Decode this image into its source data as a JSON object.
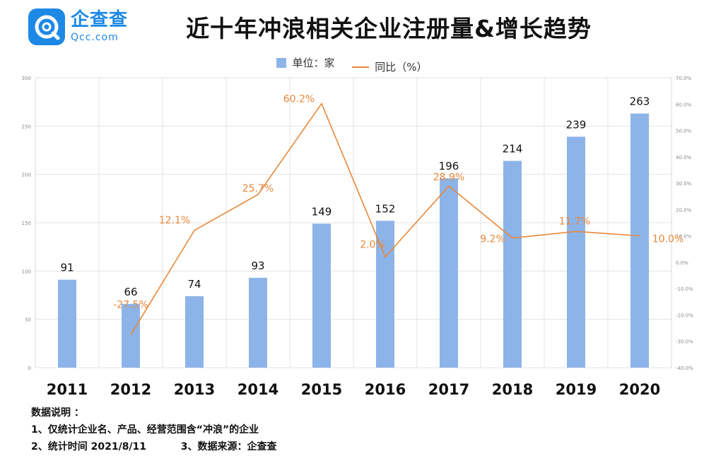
{
  "logo": {
    "name": "企查查",
    "sub": "Qcc.com"
  },
  "title": "近十年冲浪相关企业注册量&增长趋势",
  "legend": {
    "bar": "单位：家",
    "line": "同比（%）"
  },
  "colors": {
    "bar": "#8db4e8",
    "line": "#e7883a",
    "line_label": "#e7883a"
  },
  "notes": {
    "heading": "数据说明 ：",
    "line1": "1、仅统计企业名、产品、经营范围含“冲浪”的企业",
    "line2": "2、统计时间 2021/8/11          3、数据来源：企查查"
  },
  "chart_data": {
    "type": "bar",
    "categories": [
      "2011",
      "2012",
      "2013",
      "2014",
      "2015",
      "2016",
      "2017",
      "2018",
      "2019",
      "2020"
    ],
    "series": [
      {
        "name": "单位：家",
        "type": "bar",
        "axis": "left",
        "values": [
          91,
          66,
          74,
          93,
          149,
          152,
          196,
          214,
          239,
          263
        ]
      },
      {
        "name": "同比（%）",
        "type": "line",
        "axis": "right",
        "values": [
          null,
          -27.5,
          12.1,
          25.7,
          60.2,
          2.0,
          28.9,
          9.2,
          11.7,
          10.0
        ]
      }
    ],
    "bar_labels": [
      "91",
      "66",
      "74",
      "93",
      "149",
      "152",
      "196",
      "214",
      "239",
      "263"
    ],
    "line_labels": [
      "",
      "-27.5%",
      "12.1%",
      "25.7%",
      "60.2%",
      "2.0%",
      "28.9%",
      "9.2%",
      "11.7%",
      "10.0%"
    ],
    "ylim_left": [
      0,
      300
    ],
    "yticks_left": [
      "0",
      "50",
      "100",
      "150",
      "200",
      "250",
      "300"
    ],
    "ylim_right": [
      -40,
      70
    ],
    "yticks_right": [
      "-40.0%",
      "-30.0%",
      "-20.0%",
      "-10.0%",
      "0.0%",
      "10.0%",
      "20.0%",
      "30.0%",
      "40.0%",
      "50.0%",
      "60.0%",
      "70.0%"
    ],
    "grid": true
  }
}
